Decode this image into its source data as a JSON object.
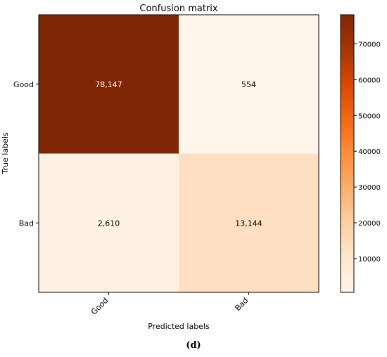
{
  "chart_data": {
    "type": "heatmap",
    "title": "Confusion matrix",
    "xlabel": "Predicted labels",
    "ylabel": "True labels",
    "x_categories": [
      "Good",
      "Bad"
    ],
    "y_categories": [
      "Good",
      "Bad"
    ],
    "values": [
      [
        78147,
        554
      ],
      [
        2610,
        13144
      ]
    ],
    "value_labels": [
      [
        "78,147",
        "554"
      ],
      [
        "2,610",
        "13,144"
      ]
    ],
    "colormap": "Oranges",
    "colorbar": {
      "min": 554,
      "max": 78147,
      "ticks": [
        10000,
        20000,
        30000,
        40000,
        50000,
        60000,
        70000
      ],
      "tick_labels": [
        "10000",
        "20000",
        "30000",
        "40000",
        "50000",
        "60000",
        "70000"
      ]
    },
    "grid": false
  },
  "caption": "(d)"
}
